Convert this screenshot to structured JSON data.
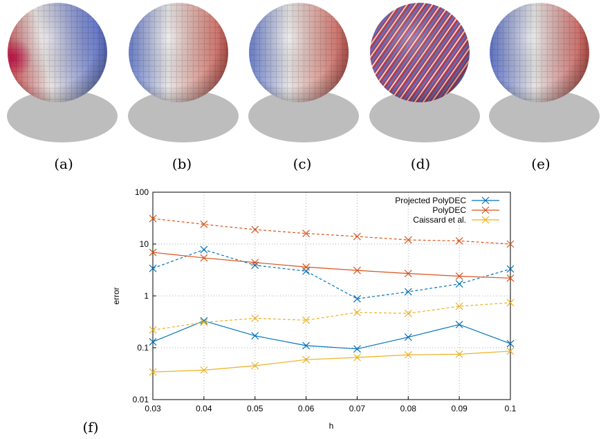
{
  "panels": [
    {
      "label": "(a)"
    },
    {
      "label": "(b)"
    },
    {
      "label": "(c)"
    },
    {
      "label": "(d)"
    },
    {
      "label": "(e)"
    }
  ],
  "chart_data": {
    "type": "line",
    "panel_label": "(f)",
    "xlabel": "h",
    "ylabel": "error",
    "x": [
      0.03,
      0.04,
      0.05,
      0.06,
      0.07,
      0.08,
      0.09,
      0.1
    ],
    "xlim": [
      0.03,
      0.1
    ],
    "xticks": [
      0.03,
      0.04,
      0.05,
      0.06,
      0.07,
      0.08,
      0.09,
      0.1
    ],
    "ylim": [
      0.01,
      100
    ],
    "yticks": [
      0.01,
      0.1,
      1,
      10,
      100
    ],
    "log_y": true,
    "grid": true,
    "legend": "top-right",
    "series": [
      {
        "name": "Projected PolyDEC",
        "color": "#0072bd",
        "values": [
          0.13,
          0.33,
          0.17,
          0.11,
          0.095,
          0.16,
          0.28,
          0.12
        ],
        "dashed_values": [
          3.4,
          7.8,
          3.9,
          3.0,
          0.88,
          1.2,
          1.7,
          3.3
        ]
      },
      {
        "name": "PolyDEC",
        "color": "#d95319",
        "values": [
          6.9,
          5.4,
          4.4,
          3.6,
          3.1,
          2.7,
          2.4,
          2.2
        ],
        "dashed_values": [
          31,
          24,
          19,
          16,
          14,
          12,
          11.5,
          10
        ]
      },
      {
        "name": "Caissard et al.",
        "color": "#edb120",
        "values": [
          0.034,
          0.037,
          0.045,
          0.059,
          0.065,
          0.073,
          0.075,
          0.086
        ],
        "dashed_values": [
          0.22,
          0.31,
          0.37,
          0.34,
          0.48,
          0.46,
          0.63,
          0.74
        ]
      }
    ]
  }
}
